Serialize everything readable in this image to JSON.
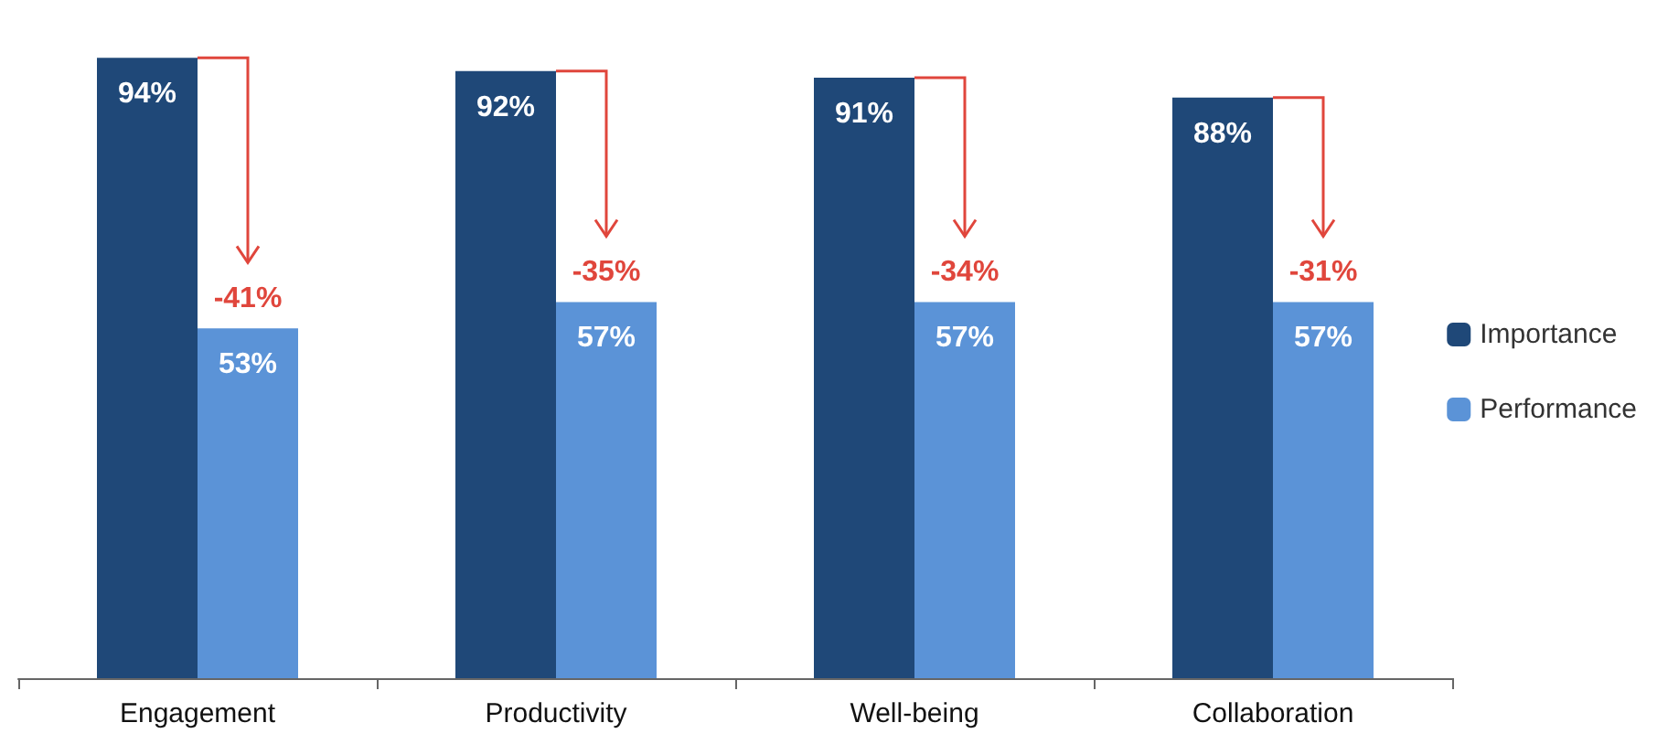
{
  "chart_data": {
    "type": "bar",
    "categories": [
      "Engagement",
      "Productivity",
      "Well-being",
      "Collaboration"
    ],
    "series": [
      {
        "name": "Importance",
        "color": "#1f4878",
        "values": [
          94,
          92,
          91,
          88
        ],
        "value_labels": [
          "94%",
          "92%",
          "91%",
          "88%"
        ]
      },
      {
        "name": "Performance",
        "color": "#5b93d7",
        "values": [
          53,
          57,
          57,
          57
        ],
        "value_labels": [
          "53%",
          "57%",
          "57%",
          "57%"
        ]
      }
    ],
    "annotations": [
      {
        "text": "-41%",
        "x": "Engagement",
        "y": 53
      },
      {
        "text": "-35%",
        "x": "Productivity",
        "y": 57
      },
      {
        "text": "-34%",
        "x": "Well-being",
        "y": 57
      },
      {
        "text": "-31%",
        "x": "Collaboration",
        "y": 57
      }
    ],
    "legend": "right"
  }
}
